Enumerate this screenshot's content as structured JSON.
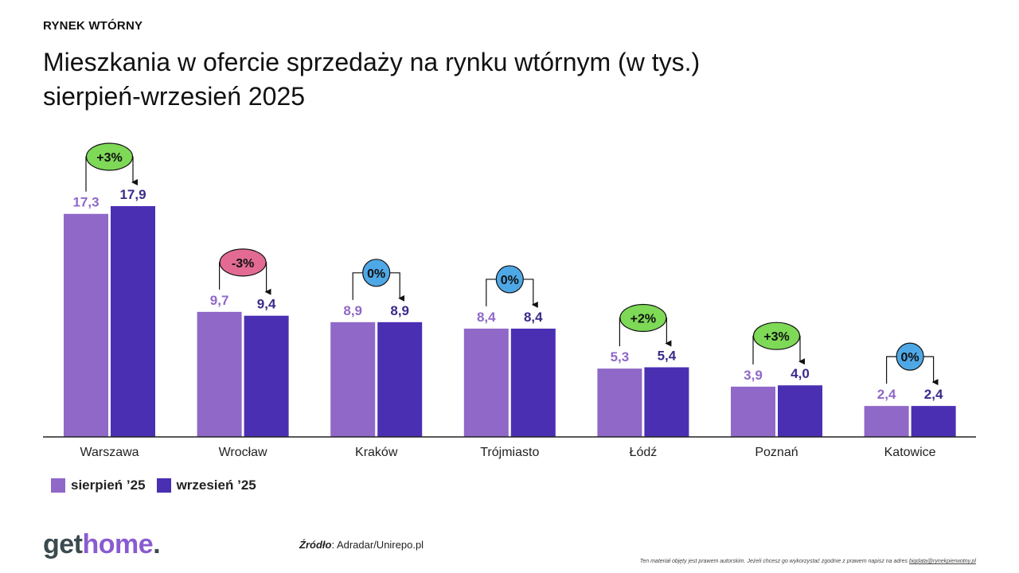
{
  "header": {
    "kicker": "RYNEK WTÓRNY",
    "title_line1": "Mieszkania w ofercie sprzedaży na rynku wtórnym (w tys.)",
    "title_line2": "sierpień-wrzesień 2025"
  },
  "legend": {
    "items": [
      {
        "label": "sierpień ’25",
        "color": "#8f68c8"
      },
      {
        "label": "wrzesień ’25",
        "color": "#4b2fb3"
      }
    ]
  },
  "colors": {
    "series1": "#8f68c8",
    "series2": "#4b2fb3",
    "label1": "#8f68c8",
    "label2": "#3a2a8a",
    "badge_up": "#7ed957",
    "badge_down": "#e36b93",
    "badge_zero": "#4fa8e6"
  },
  "chart_data": {
    "type": "bar",
    "categories": [
      "Warszawa",
      "Wrocław",
      "Kraków",
      "Trójmiasto",
      "Łódź",
      "Poznań",
      "Katowice"
    ],
    "series": [
      {
        "name": "sierpień ’25",
        "values": [
          17.3,
          9.7,
          8.9,
          8.4,
          5.3,
          3.9,
          2.4
        ],
        "labels": [
          "17,3",
          "9,7",
          "8,9",
          "8,4",
          "5,3",
          "3,9",
          "2,4"
        ]
      },
      {
        "name": "wrzesień ’25",
        "values": [
          17.9,
          9.4,
          8.9,
          8.4,
          5.4,
          4.0,
          2.4
        ],
        "labels": [
          "17,9",
          "9,4",
          "8,9",
          "8,4",
          "5,4",
          "4,0",
          "2,4"
        ]
      }
    ],
    "changes": [
      "+3%",
      "-3%",
      "0%",
      "0%",
      "+2%",
      "+3%",
      "0%"
    ],
    "change_types": [
      "up",
      "down",
      "zero",
      "zero",
      "up",
      "up",
      "zero"
    ],
    "title": "Mieszkania w ofercie sprzedaży na rynku wtórnym (w tys.)",
    "subtitle": "sierpień-wrzesień 2025",
    "xlabel": "",
    "ylabel": "",
    "ylim": [
      0,
      18
    ],
    "grid": false,
    "legend_position": "bottom-left"
  },
  "footer": {
    "logo_get": "get",
    "logo_home": "home",
    "logo_dot": ".",
    "source_label": "Źródło",
    "source_text": ": Adradar/Unirepo.pl",
    "copyright_text": "Ten materiał objęty jest prawem autorskim. Jeżeli chcesz go wykorzystać zgodnie z prawem napisz na adres ",
    "copyright_email": "bigdata@rynekpierwotny.pl"
  }
}
